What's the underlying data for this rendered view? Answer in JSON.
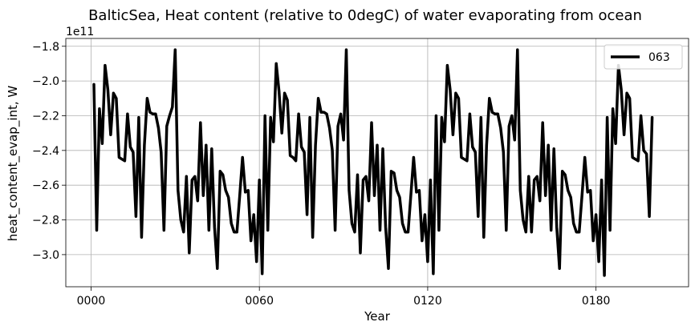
{
  "chart_data": {
    "type": "line",
    "title": "BalticSea, Heat content (relative to 0degC) of water evaporating from ocean",
    "xlabel": "Year",
    "ylabel": "heat_content_evap_int, W",
    "y_offset_label": "1e11",
    "y_scale": 100000000000.0,
    "xlim": [
      -9,
      213
    ],
    "ylim": [
      -3.185,
      -1.755
    ],
    "xticks": [
      0,
      60,
      120,
      180
    ],
    "xtick_labels": [
      "0000",
      "0060",
      "0120",
      "0180"
    ],
    "yticks": [
      -3.0,
      -2.8,
      -2.6,
      -2.4,
      -2.2,
      -2.0,
      -1.8
    ],
    "ytick_labels": [
      "−3.0",
      "−2.8",
      "−2.6",
      "−2.4",
      "−2.2",
      "−2.0",
      "−1.8"
    ],
    "grid": true,
    "legend_position": "top-right",
    "series": [
      {
        "name": "063",
        "color": "#000000",
        "x": [
          1,
          2,
          3,
          4,
          5,
          6,
          7,
          8,
          9,
          10,
          11,
          12,
          13,
          14,
          15,
          16,
          17,
          18,
          19,
          20,
          21,
          22,
          23,
          24,
          25,
          26,
          27,
          28,
          29,
          30,
          31,
          32,
          33,
          34,
          35,
          36,
          37,
          38,
          39,
          40,
          41,
          42,
          43,
          44,
          45,
          46,
          47,
          48,
          49,
          50,
          51,
          52,
          53,
          54,
          55,
          56,
          57,
          58,
          59,
          60,
          61,
          62,
          63,
          64,
          65,
          66,
          67,
          68,
          69,
          70,
          71,
          72,
          73,
          74,
          75,
          76,
          77,
          78,
          79,
          80,
          81,
          82,
          83,
          84,
          85,
          86,
          87,
          88,
          89,
          90,
          91,
          92,
          93,
          94,
          95,
          96,
          97,
          98,
          99,
          100,
          101,
          102,
          103,
          104,
          105,
          106,
          107,
          108,
          109,
          110,
          111,
          112,
          113,
          114,
          115,
          116,
          117,
          118,
          119,
          120,
          121,
          122,
          123,
          124,
          125,
          126,
          127,
          128,
          129,
          130,
          131,
          132,
          133,
          134,
          135,
          136,
          137,
          138,
          139,
          140,
          141,
          142,
          143,
          144,
          145,
          146,
          147,
          148,
          149,
          150,
          151,
          152,
          153,
          154,
          155,
          156,
          157,
          158,
          159,
          160,
          161,
          162,
          163,
          164,
          165,
          166,
          167,
          168,
          169,
          170,
          171,
          172,
          173,
          174,
          175,
          176,
          177,
          178,
          179,
          180,
          181,
          182,
          183,
          184,
          185,
          186,
          187,
          188,
          189,
          190,
          191,
          192,
          193,
          194,
          195,
          196,
          197,
          198,
          199,
          200
        ],
        "values": [
          -2.02,
          -2.86,
          -2.16,
          -2.36,
          -1.91,
          -2.05,
          -2.31,
          -2.07,
          -2.1,
          -2.44,
          -2.45,
          -2.46,
          -2.19,
          -2.38,
          -2.41,
          -2.78,
          -2.21,
          -2.9,
          -2.37,
          -2.1,
          -2.18,
          -2.19,
          -2.19,
          -2.27,
          -2.41,
          -2.86,
          -2.26,
          -2.2,
          -2.15,
          -1.82,
          -2.63,
          -2.8,
          -2.87,
          -2.55,
          -2.99,
          -2.57,
          -2.55,
          -2.69,
          -2.24,
          -2.66,
          -2.37,
          -2.86,
          -2.39,
          -2.84,
          -3.08,
          -2.52,
          -2.54,
          -2.63,
          -2.67,
          -2.82,
          -2.87,
          -2.87,
          -2.66,
          -2.44,
          -2.64,
          -2.63,
          -2.92,
          -2.77,
          -3.04,
          -2.57,
          -3.11,
          -2.2,
          -2.86,
          -2.21,
          -2.35,
          -1.9,
          -2.06,
          -2.3,
          -2.07,
          -2.11,
          -2.43,
          -2.44,
          -2.46,
          -2.19,
          -2.38,
          -2.41,
          -2.77,
          -2.21,
          -2.9,
          -2.37,
          -2.1,
          -2.18,
          -2.18,
          -2.19,
          -2.27,
          -2.4,
          -2.86,
          -2.26,
          -2.19,
          -2.34,
          -1.82,
          -2.63,
          -2.82,
          -2.87,
          -2.54,
          -2.99,
          -2.57,
          -2.55,
          -2.69,
          -2.24,
          -2.66,
          -2.37,
          -2.86,
          -2.39,
          -2.84,
          -3.08,
          -2.52,
          -2.53,
          -2.63,
          -2.67,
          -2.82,
          -2.87,
          -2.87,
          -2.66,
          -2.44,
          -2.64,
          -2.63,
          -2.92,
          -2.77,
          -3.04,
          -2.57,
          -3.11,
          -2.2,
          -2.86,
          -2.21,
          -2.35,
          -1.91,
          -2.05,
          -2.31,
          -2.07,
          -2.1,
          -2.44,
          -2.45,
          -2.46,
          -2.19,
          -2.38,
          -2.41,
          -2.78,
          -2.21,
          -2.9,
          -2.37,
          -2.1,
          -2.18,
          -2.19,
          -2.19,
          -2.27,
          -2.41,
          -2.86,
          -2.26,
          -2.2,
          -2.34,
          -1.82,
          -2.63,
          -2.8,
          -2.87,
          -2.55,
          -2.87,
          -2.57,
          -2.55,
          -2.69,
          -2.24,
          -2.66,
          -2.37,
          -2.86,
          -2.39,
          -2.84,
          -3.08,
          -2.52,
          -2.54,
          -2.63,
          -2.67,
          -2.82,
          -2.87,
          -2.87,
          -2.66,
          -2.44,
          -2.64,
          -2.63,
          -2.92,
          -2.77,
          -3.04,
          -2.57,
          -3.12,
          -2.21,
          -2.86,
          -2.16,
          -2.36,
          -1.91,
          -2.05,
          -2.31,
          -2.07,
          -2.1,
          -2.44,
          -2.45,
          -2.46,
          -2.2,
          -2.4,
          -2.42,
          -2.78,
          -2.21
        ]
      }
    ]
  }
}
